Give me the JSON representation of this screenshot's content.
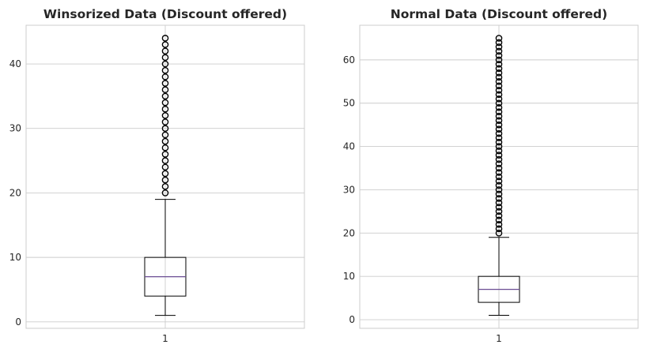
{
  "chart_data": [
    {
      "type": "box",
      "title": "Winsorized Data (Discount offered)",
      "xlabel": "",
      "ylabel": "",
      "categories": [
        "1"
      ],
      "ylim": [
        -1,
        46
      ],
      "yticks": [
        0,
        10,
        20,
        30,
        40
      ],
      "grid": true,
      "box": {
        "min": 1,
        "q1": 4,
        "median": 7,
        "q3": 10,
        "max": 19
      },
      "outliers": [
        20,
        21,
        22,
        23,
        24,
        25,
        26,
        27,
        28,
        29,
        30,
        31,
        32,
        33,
        34,
        35,
        36,
        37,
        38,
        39,
        40,
        41,
        42,
        43,
        44
      ],
      "colors": {
        "box": "#000000",
        "median": "#6a4c93",
        "grid": "#cccccc",
        "text": "#262626"
      }
    },
    {
      "type": "box",
      "title": "Normal Data (Discount offered)",
      "xlabel": "",
      "ylabel": "",
      "categories": [
        "1"
      ],
      "ylim": [
        -2,
        68
      ],
      "yticks": [
        0,
        10,
        20,
        30,
        40,
        50,
        60
      ],
      "grid": true,
      "box": {
        "min": 1,
        "q1": 4,
        "median": 7,
        "q3": 10,
        "max": 19
      },
      "outliers": [
        20,
        21,
        22,
        23,
        24,
        25,
        26,
        27,
        28,
        29,
        30,
        31,
        32,
        33,
        34,
        35,
        36,
        37,
        38,
        39,
        40,
        41,
        42,
        43,
        44,
        45,
        46,
        47,
        48,
        49,
        50,
        51,
        52,
        53,
        54,
        55,
        56,
        57,
        58,
        59,
        60,
        61,
        62,
        63,
        64,
        65
      ],
      "colors": {
        "box": "#000000",
        "median": "#6a4c93",
        "grid": "#cccccc",
        "text": "#262626"
      }
    }
  ]
}
